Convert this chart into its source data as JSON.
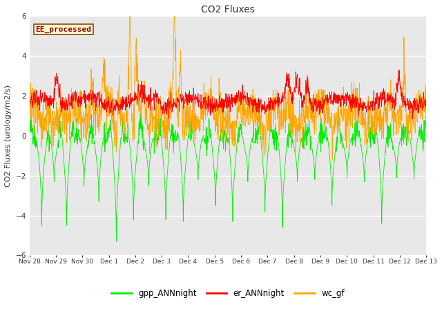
{
  "title": "CO2 Fluxes",
  "ylabel": "CO2 Fluxes (urology/m2/s)",
  "ylim": [
    -6,
    6
  ],
  "yticks": [
    -6,
    -4,
    -2,
    0,
    2,
    4,
    6
  ],
  "plot_bg_color": "#e8e8e8",
  "fig_bg_color": "#ffffff",
  "label_text": "EE_processed",
  "label_color": "#8b0000",
  "label_bg": "#ffffcc",
  "label_border": "#8b4513",
  "gpp_color": "#00ee00",
  "er_color": "#ff0000",
  "wc_color": "#ffa500",
  "legend_items": [
    "gpp_ANNnight",
    "er_ANNnight",
    "wc_gf"
  ],
  "seed": 42
}
